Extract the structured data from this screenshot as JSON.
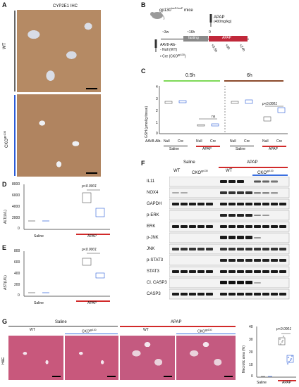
{
  "panelA": {
    "letter": "A",
    "title": "CYP2E1 IHC",
    "label_wt": "WT",
    "label_cko": "CKO",
    "label_cko_sup": "gp130"
  },
  "panelB": {
    "letter": "B",
    "mice": "gp130",
    "mice_sup": "loxP/loxP",
    "mice_suffix": " mice",
    "apap": "APAP",
    "dose": "(400mg/kg)",
    "t1": "~3w",
    "t2": "~16h",
    "t0": "0",
    "aav": "AAV8-Alb-",
    "null_wt": "- Null (WT)",
    "cre": "• Cre (CKO",
    "cre_sup": "gp130",
    "cre_close": ")",
    "fasting": "fasting",
    "phase_apap": "APAP",
    "tp": [
      "+0.5h",
      "+6h",
      "+24h"
    ]
  },
  "panelC": {
    "letter": "C",
    "time1": "0.5h",
    "time2": "6h",
    "ylabel": "GSH (μmol/g tissue)",
    "yticks": [
      "0",
      "1",
      "2",
      "3",
      "4"
    ],
    "ns": "ns",
    "pval": "p<0.0001",
    "aav": "AAV8-Alb-",
    "xlabels": [
      "Null",
      "Cre",
      "Null",
      "Cre",
      "Null",
      "Cre",
      "Null",
      "Cre"
    ],
    "groups": [
      "Saline",
      "APAP",
      "Saline",
      "APAP"
    ]
  },
  "panelD": {
    "letter": "D",
    "ylabel": "ALT(U/L)",
    "yticks": [
      "0",
      "2000",
      "4000",
      "6000",
      "8000"
    ],
    "pval": "p<0.0001",
    "groups": [
      "Saline",
      "APAP"
    ]
  },
  "panelE": {
    "letter": "E",
    "ylabel": "AST(U/L)",
    "yticks": [
      "0",
      "200",
      "400",
      "600",
      "800"
    ],
    "pval": "p<0.0001",
    "groups": [
      "Saline",
      "APAP"
    ]
  },
  "panelF": {
    "letter": "F",
    "saline": "Saline",
    "apap": "APAP",
    "wt1": "WT",
    "cko1": "CKO",
    "wt2": "WT",
    "cko2": "CKO",
    "sup": "gp130",
    "proteins": [
      "IL11",
      "NOX4",
      "GAPDH",
      "p-ERK",
      "ERK",
      "p-JNK",
      "JNK",
      "p-STAT3",
      "STAT3",
      "Cl. CASP3",
      "CASP3"
    ]
  },
  "panelG": {
    "letter": "G",
    "saline": "Saline",
    "apap": "APAP",
    "wt1": "WT",
    "cko1": "CKO",
    "wt2": "WT",
    "cko2": "CKO",
    "sup": "gp130",
    "stain": "H&E",
    "ylabel": "Necrotic area (%)",
    "yticks": [
      "0",
      "10",
      "20",
      "30",
      "40"
    ],
    "pval": "p<0.0001",
    "groups": [
      "Saline",
      "APAP"
    ]
  },
  "colors": {
    "wt": "#555555",
    "cko": "#2a5bd7",
    "green": "#7ed957",
    "brown": "#8b4a2b",
    "red": "#d12a2a",
    "blue": "#3a6fe0"
  }
}
